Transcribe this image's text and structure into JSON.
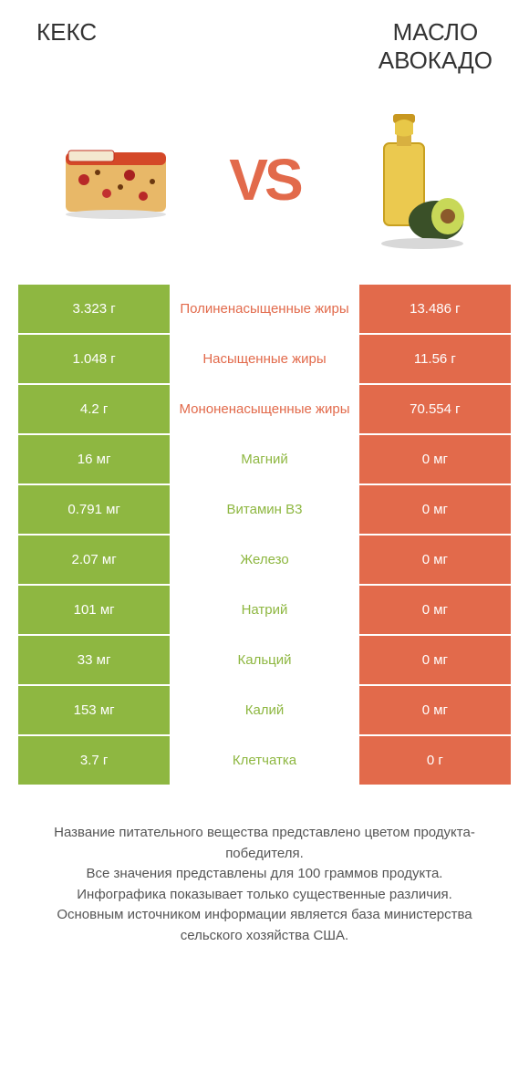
{
  "colors": {
    "green": "#8eb741",
    "orange": "#e26a4b",
    "green_text": "#8eb741",
    "orange_text": "#e26a4b",
    "white": "#ffffff",
    "header_text": "#333333",
    "footer_text": "#555555"
  },
  "header": {
    "left_title": "КЕКС",
    "right_title_line1": "МАСЛО",
    "right_title_line2": "АВОКАДО"
  },
  "vs": "VS",
  "rows": [
    {
      "left": "3.323 г",
      "mid": "Полиненасыщенные жиры",
      "right": "13.486 г",
      "winner": "right"
    },
    {
      "left": "1.048 г",
      "mid": "Насыщенные жиры",
      "right": "11.56 г",
      "winner": "right"
    },
    {
      "left": "4.2 г",
      "mid": "Мононенасыщенные жиры",
      "right": "70.554 г",
      "winner": "right"
    },
    {
      "left": "16 мг",
      "mid": "Магний",
      "right": "0 мг",
      "winner": "left"
    },
    {
      "left": "0.791 мг",
      "mid": "Витамин B3",
      "right": "0 мг",
      "winner": "left"
    },
    {
      "left": "2.07 мг",
      "mid": "Железо",
      "right": "0 мг",
      "winner": "left"
    },
    {
      "left": "101 мг",
      "mid": "Натрий",
      "right": "0 мг",
      "winner": "left"
    },
    {
      "left": "33 мг",
      "mid": "Кальций",
      "right": "0 мг",
      "winner": "left"
    },
    {
      "left": "153 мг",
      "mid": "Калий",
      "right": "0 мг",
      "winner": "left"
    },
    {
      "left": "3.7 г",
      "mid": "Клетчатка",
      "right": "0 г",
      "winner": "left"
    }
  ],
  "footer": {
    "line1": "Название питательного вещества представлено цветом продукта-победителя.",
    "line2": "Все значения представлены для 100 граммов продукта.",
    "line3": "Инфографика показывает только существенные различия.",
    "line4": "Основным источником информации является база министерства сельского хозяйства США."
  }
}
